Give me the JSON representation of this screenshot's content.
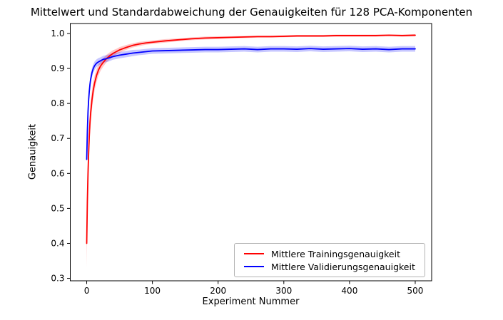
{
  "chart_data": {
    "type": "line",
    "title": "Mittelwert und Standardabweichung der Genauigkeiten für 128 PCA-Komponenten",
    "xlabel": "Experiment Nummer",
    "ylabel": "Genauigkeit",
    "xlim": [
      -25,
      525
    ],
    "ylim": [
      0.293,
      1.0285
    ],
    "xticks": [
      0,
      100,
      200,
      300,
      400,
      500
    ],
    "yticks": [
      0.3,
      0.4,
      0.5,
      0.6,
      0.7,
      0.8,
      0.9,
      1.0
    ],
    "grid": false,
    "legend_position": "lower right",
    "band_opacity": 0.22,
    "x": [
      0,
      1,
      2,
      3,
      4,
      5,
      6,
      8,
      10,
      12,
      15,
      18,
      21,
      25,
      30,
      35,
      40,
      45,
      50,
      60,
      70,
      80,
      90,
      100,
      120,
      140,
      160,
      180,
      200,
      220,
      240,
      260,
      280,
      300,
      320,
      340,
      360,
      380,
      400,
      420,
      440,
      460,
      480,
      500
    ],
    "series": [
      {
        "id": "training",
        "name": "Mittlere Trainingsgenauigkeit",
        "color": "#ff0000",
        "values": [
          0.4,
          0.52,
          0.6,
          0.662,
          0.71,
          0.746,
          0.772,
          0.81,
          0.838,
          0.858,
          0.88,
          0.896,
          0.907,
          0.917,
          0.928,
          0.936,
          0.943,
          0.948,
          0.953,
          0.96,
          0.966,
          0.97,
          0.973,
          0.975,
          0.979,
          0.982,
          0.985,
          0.987,
          0.988,
          0.989,
          0.99,
          0.991,
          0.991,
          0.992,
          0.993,
          0.993,
          0.993,
          0.994,
          0.994,
          0.994,
          0.994,
          0.995,
          0.994,
          0.995
        ],
        "std": [
          0.07,
          0.06,
          0.052,
          0.046,
          0.041,
          0.037,
          0.033,
          0.028,
          0.024,
          0.021,
          0.018,
          0.016,
          0.014,
          0.012,
          0.011,
          0.01,
          0.009,
          0.008,
          0.008,
          0.007,
          0.006,
          0.006,
          0.005,
          0.005,
          0.005,
          0.004,
          0.004,
          0.004,
          0.004,
          0.003,
          0.003,
          0.003,
          0.003,
          0.003,
          0.003,
          0.003,
          0.003,
          0.003,
          0.003,
          0.003,
          0.003,
          0.002,
          0.003,
          0.003
        ]
      },
      {
        "id": "validation",
        "name": "Mittlere Validierungsgenauigkeit",
        "color": "#0000ff",
        "values": [
          0.64,
          0.72,
          0.776,
          0.812,
          0.836,
          0.855,
          0.869,
          0.888,
          0.9,
          0.908,
          0.915,
          0.919,
          0.922,
          0.926,
          0.928,
          0.931,
          0.934,
          0.936,
          0.938,
          0.941,
          0.944,
          0.946,
          0.948,
          0.95,
          0.951,
          0.952,
          0.953,
          0.954,
          0.954,
          0.955,
          0.956,
          0.954,
          0.956,
          0.956,
          0.955,
          0.957,
          0.955,
          0.956,
          0.957,
          0.955,
          0.956,
          0.954,
          0.956,
          0.956
        ],
        "std": [
          0.012,
          0.014,
          0.015,
          0.015,
          0.015,
          0.014,
          0.014,
          0.013,
          0.012,
          0.012,
          0.011,
          0.011,
          0.01,
          0.01,
          0.01,
          0.01,
          0.009,
          0.009,
          0.009,
          0.009,
          0.009,
          0.008,
          0.008,
          0.008,
          0.008,
          0.008,
          0.008,
          0.008,
          0.008,
          0.008,
          0.008,
          0.008,
          0.008,
          0.008,
          0.008,
          0.008,
          0.008,
          0.008,
          0.008,
          0.008,
          0.008,
          0.008,
          0.008,
          0.008
        ]
      }
    ]
  },
  "colors": {
    "axis": "#000000",
    "text": "#000000",
    "legend_border": "#b3b3b3",
    "background": "#ffffff"
  }
}
